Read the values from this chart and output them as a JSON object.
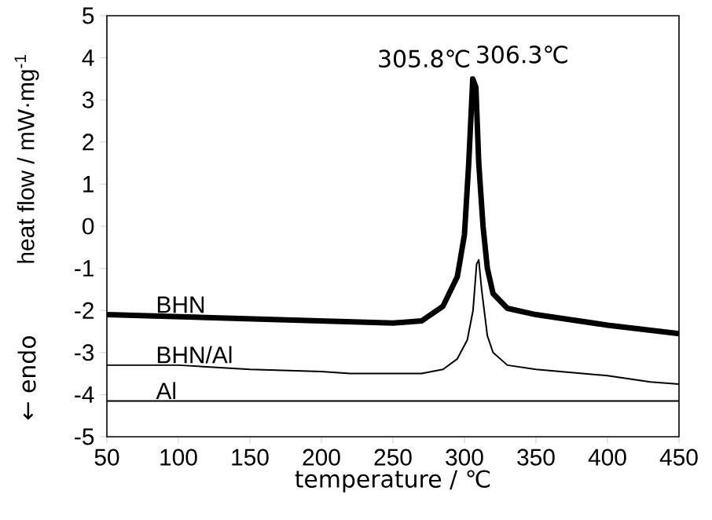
{
  "chart_data": {
    "type": "line",
    "xlabel": "temperature / ℃",
    "ylabel": "heat flow / mW·mg$^{-1}$",
    "xlim": [
      50,
      450
    ],
    "ylim": [
      -5,
      5
    ],
    "xticks": [
      50,
      100,
      150,
      200,
      250,
      300,
      350,
      400,
      450
    ],
    "yticks": [
      -5,
      -4,
      -3,
      -2,
      -1,
      0,
      1,
      2,
      3,
      4,
      5
    ],
    "marker": "none",
    "line_style": "solid",
    "series": [
      {
        "name": "BHN",
        "color": "#000000",
        "x": [
          50,
          100,
          150,
          200,
          250,
          270,
          285,
          295,
          300,
          303,
          305.8,
          308,
          310,
          313,
          316,
          320,
          330,
          350,
          400,
          450
        ],
        "values": [
          -2.1,
          -2.15,
          -2.2,
          -2.25,
          -2.3,
          -2.25,
          -1.9,
          -1.2,
          -0.2,
          1.5,
          3.5,
          3.3,
          1.5,
          0,
          -1.0,
          -1.6,
          -1.95,
          -2.1,
          -2.35,
          -2.55
        ]
      },
      {
        "name": "BHN/Al",
        "color": "#000000",
        "x": [
          50,
          100,
          150,
          200,
          220,
          270,
          285,
          295,
          302,
          306,
          308.5,
          310,
          312,
          316,
          320,
          330,
          350,
          400,
          430,
          450
        ],
        "values": [
          -3.3,
          -3.3,
          -3.4,
          -3.45,
          -3.5,
          -3.5,
          -3.4,
          -3.15,
          -2.7,
          -2.0,
          -0.9,
          -0.8,
          -1.5,
          -2.6,
          -3.0,
          -3.3,
          -3.4,
          -3.55,
          -3.7,
          -3.75
        ]
      },
      {
        "name": "Al",
        "color": "#000000",
        "x": [
          50,
          450
        ],
        "values": [
          -4.15,
          -4.15
        ]
      }
    ],
    "annotations": [
      {
        "text": "305.8℃",
        "x": 305.8,
        "y": 3.5
      },
      {
        "text": "306.3℃",
        "x": 306.3,
        "y": 3.3
      },
      "← endo"
    ]
  }
}
